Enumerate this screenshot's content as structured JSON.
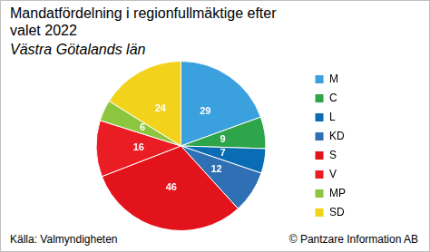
{
  "chart_data": {
    "type": "pie",
    "title": "Mandatfördelning i regionfullmäktige efter valet 2022",
    "subtitle": "Västra Götalands län",
    "categories": [
      "M",
      "C",
      "L",
      "KD",
      "S",
      "V",
      "MP",
      "SD"
    ],
    "values": [
      29,
      9,
      7,
      12,
      46,
      16,
      6,
      24
    ],
    "colors": [
      "#3aa0de",
      "#2ea54a",
      "#0a6cb4",
      "#2f6fb3",
      "#e3131b",
      "#ea1d25",
      "#8cc63f",
      "#f2d21b"
    ],
    "legend": "right",
    "data_labels": true,
    "source": "Källa: Valmyndigheten",
    "credit": "© Pantzare Information AB"
  }
}
